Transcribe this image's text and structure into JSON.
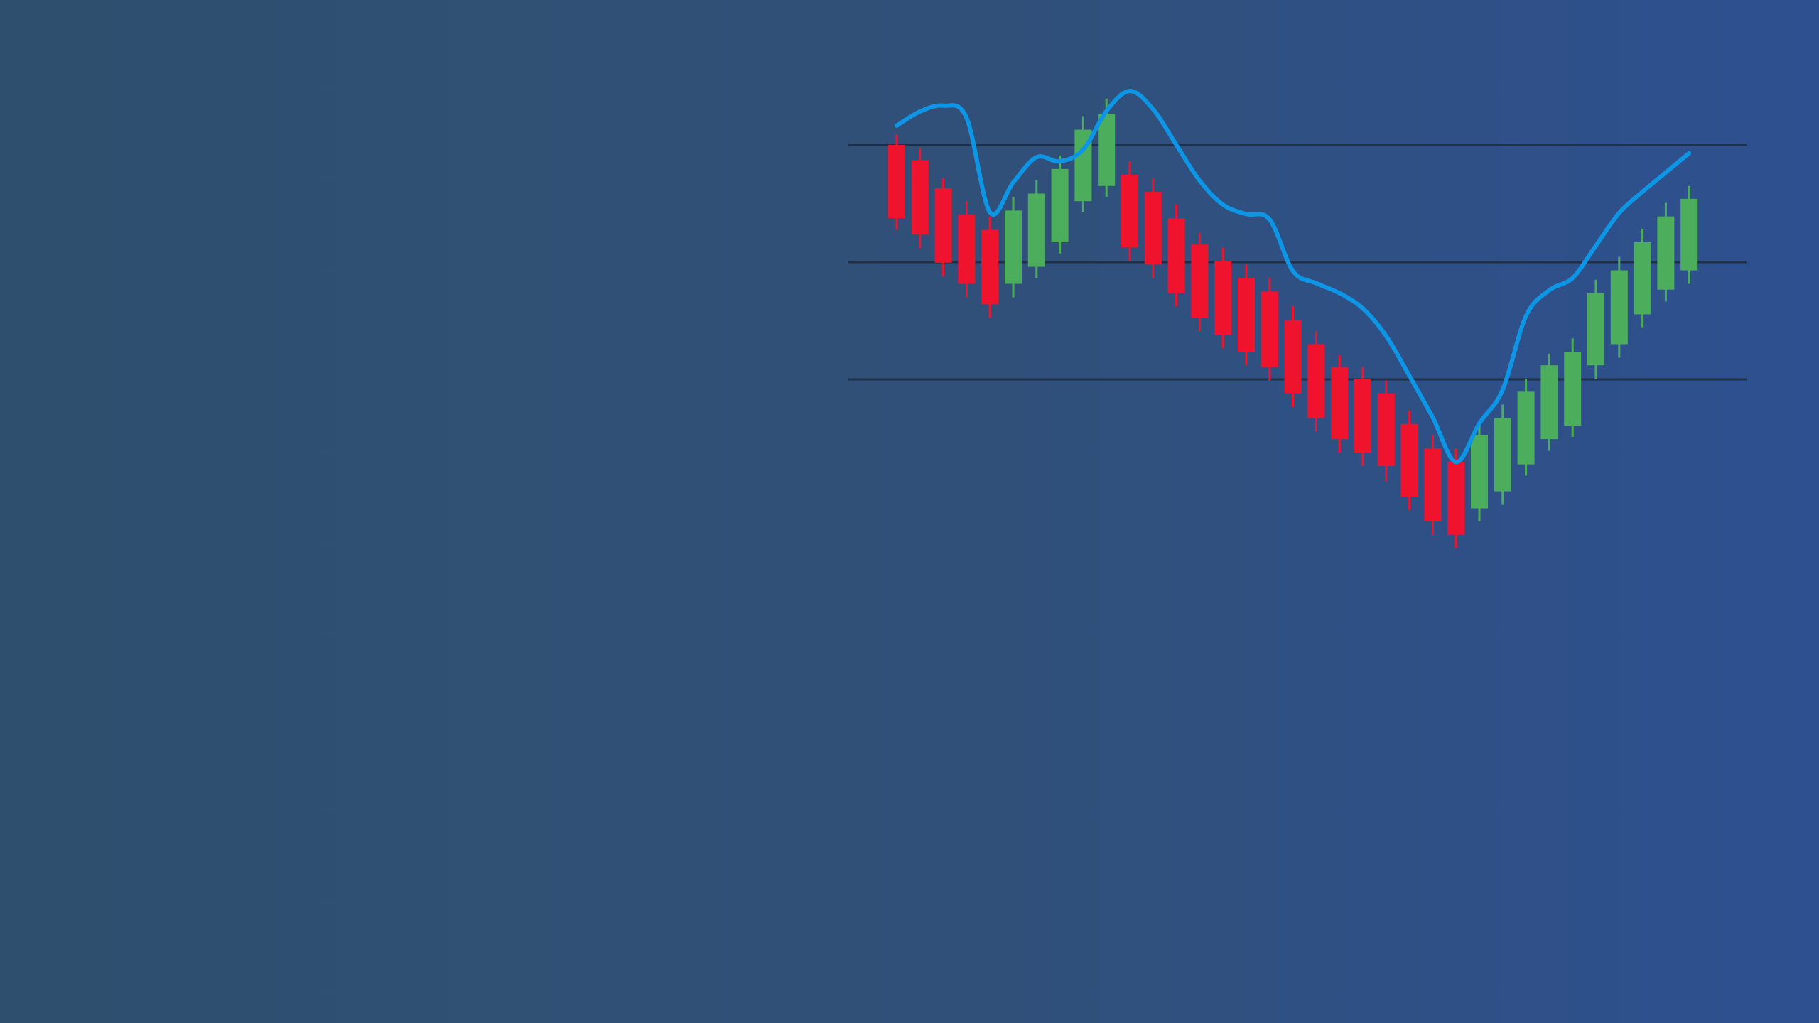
{
  "chart_data": {
    "type": "candlestick",
    "title": "",
    "xlabel": "",
    "ylabel": "",
    "grid": true,
    "axes_visible": false,
    "colors": {
      "up": "#4cae5c",
      "down": "#f0132d",
      "line": "#0e96e6",
      "gridline": "#1f3049"
    },
    "ylim": [
      0,
      100
    ],
    "gridlines": [
      80,
      60,
      40
    ],
    "candles": [
      {
        "open": 80.0,
        "close": 67.5,
        "high": 81.8,
        "low": 65.5
      },
      {
        "open": 77.4,
        "close": 64.7,
        "high": 79.4,
        "low": 62.4
      },
      {
        "open": 72.6,
        "close": 59.9,
        "high": 74.3,
        "low": 57.6
      },
      {
        "open": 68.1,
        "close": 56.3,
        "high": 70.4,
        "low": 54.0
      },
      {
        "open": 65.5,
        "close": 52.8,
        "high": 67.8,
        "low": 50.5
      },
      {
        "open": 56.3,
        "close": 68.8,
        "high": 71.1,
        "low": 54.0
      },
      {
        "open": 59.2,
        "close": 71.7,
        "high": 74.0,
        "low": 57.3
      },
      {
        "open": 63.4,
        "close": 75.9,
        "high": 78.2,
        "low": 61.5
      },
      {
        "open": 70.4,
        "close": 82.6,
        "high": 84.9,
        "low": 68.6
      },
      {
        "open": 73.0,
        "close": 85.3,
        "high": 87.9,
        "low": 71.1
      },
      {
        "open": 74.9,
        "close": 62.5,
        "high": 77.2,
        "low": 60.2
      },
      {
        "open": 72.0,
        "close": 59.6,
        "high": 74.3,
        "low": 57.3
      },
      {
        "open": 67.5,
        "close": 54.7,
        "high": 69.8,
        "low": 52.5
      },
      {
        "open": 63.0,
        "close": 50.5,
        "high": 65.0,
        "low": 48.2
      },
      {
        "open": 60.2,
        "close": 47.6,
        "high": 62.5,
        "low": 45.3
      },
      {
        "open": 57.3,
        "close": 44.7,
        "high": 59.6,
        "low": 42.4
      },
      {
        "open": 55.0,
        "close": 42.1,
        "high": 57.3,
        "low": 39.8
      },
      {
        "open": 50.1,
        "close": 37.6,
        "high": 52.5,
        "low": 35.3
      },
      {
        "open": 46.0,
        "close": 33.4,
        "high": 48.2,
        "low": 31.1
      },
      {
        "open": 42.1,
        "close": 29.8,
        "high": 44.1,
        "low": 27.5
      },
      {
        "open": 40.1,
        "close": 27.5,
        "high": 42.1,
        "low": 25.2
      },
      {
        "open": 37.6,
        "close": 25.2,
        "high": 39.8,
        "low": 22.6
      },
      {
        "open": 32.4,
        "close": 20.0,
        "high": 34.7,
        "low": 17.7
      },
      {
        "open": 28.2,
        "close": 15.8,
        "high": 30.5,
        "low": 13.5
      },
      {
        "open": 25.9,
        "close": 13.5,
        "high": 28.2,
        "low": 11.2
      },
      {
        "open": 18.0,
        "close": 30.5,
        "high": 32.8,
        "low": 15.8
      },
      {
        "open": 20.9,
        "close": 33.4,
        "high": 35.7,
        "low": 18.6
      },
      {
        "open": 25.5,
        "close": 37.9,
        "high": 40.1,
        "low": 23.6
      },
      {
        "open": 29.8,
        "close": 42.4,
        "high": 44.4,
        "low": 27.8
      },
      {
        "open": 32.1,
        "close": 44.7,
        "high": 47.0,
        "low": 30.2
      },
      {
        "open": 42.4,
        "close": 54.7,
        "high": 57.0,
        "low": 40.1
      },
      {
        "open": 46.0,
        "close": 58.6,
        "high": 60.9,
        "low": 43.7
      },
      {
        "open": 51.1,
        "close": 63.4,
        "high": 65.7,
        "low": 48.9
      },
      {
        "open": 55.3,
        "close": 67.8,
        "high": 70.1,
        "low": 53.3
      },
      {
        "open": 58.6,
        "close": 70.8,
        "high": 73.0,
        "low": 56.3
      }
    ],
    "series": [
      {
        "type": "line",
        "values": [
          83.3,
          85.7,
          86.7,
          84.6,
          68.5,
          73.6,
          77.9,
          77.2,
          79.2,
          85.8,
          89.2,
          86.1,
          80.0,
          73.9,
          69.8,
          68.2,
          67.3,
          58.5,
          56.4,
          54.7,
          52.1,
          47.4,
          40.6,
          33.5,
          25.9,
          32.5,
          38.2,
          50.8,
          55.2,
          57.3,
          62.8,
          68.4,
          72.0,
          75.3,
          78.6
        ]
      }
    ]
  }
}
